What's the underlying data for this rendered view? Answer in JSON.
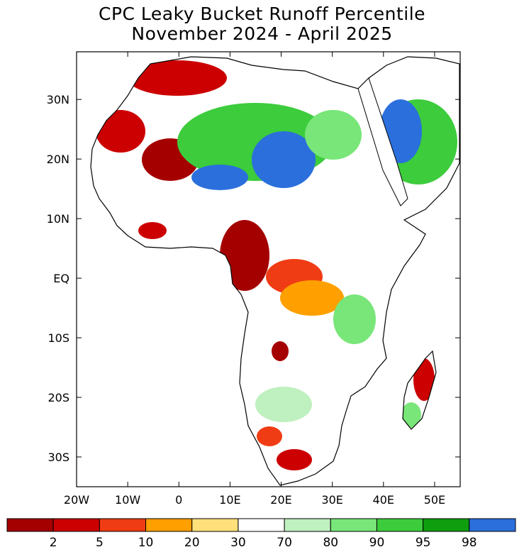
{
  "title": {
    "line1": "CPC Leaky Bucket Runoff Percentile",
    "line2": "November 2024 - April 2025"
  },
  "map": {
    "region": "Africa",
    "lon_range": [
      -20,
      55
    ],
    "lat_range": [
      -35,
      38
    ],
    "y_ticks": [
      {
        "lat": 30,
        "label": "30N"
      },
      {
        "lat": 20,
        "label": "20N"
      },
      {
        "lat": 10,
        "label": "10N"
      },
      {
        "lat": 0,
        "label": "EQ"
      },
      {
        "lat": -10,
        "label": "10S"
      },
      {
        "lat": -20,
        "label": "20S"
      },
      {
        "lat": -30,
        "label": "30S"
      }
    ],
    "x_ticks": [
      {
        "lon": -20,
        "label": "20W"
      },
      {
        "lon": -10,
        "label": "10W"
      },
      {
        "lon": 0,
        "label": "0"
      },
      {
        "lon": 10,
        "label": "10E"
      },
      {
        "lon": 20,
        "label": "20E"
      },
      {
        "lon": 30,
        "label": "30E"
      },
      {
        "lon": 40,
        "label": "40E"
      },
      {
        "lon": 50,
        "label": "50E"
      }
    ],
    "colors": {
      "coast": "#000000",
      "below": [
        "#a50000",
        "#cc0000",
        "#f03c14",
        "#ff9f00",
        "#ffe07a"
      ],
      "normal": "#ffffff",
      "above": [
        "#bff0bf",
        "#78e678",
        "#3ccc3c",
        "#0e9e0e",
        "#2a6fdc"
      ]
    }
  },
  "colorbar": {
    "colors": [
      "#a50000",
      "#cc0000",
      "#f03c14",
      "#ff9f00",
      "#ffe07a",
      "#ffffff",
      "#bff0bf",
      "#78e678",
      "#3ccc3c",
      "#0e9e0e",
      "#2a6fdc"
    ],
    "labels": [
      "2",
      "5",
      "10",
      "20",
      "30",
      "70",
      "80",
      "90",
      "95",
      "98"
    ]
  }
}
